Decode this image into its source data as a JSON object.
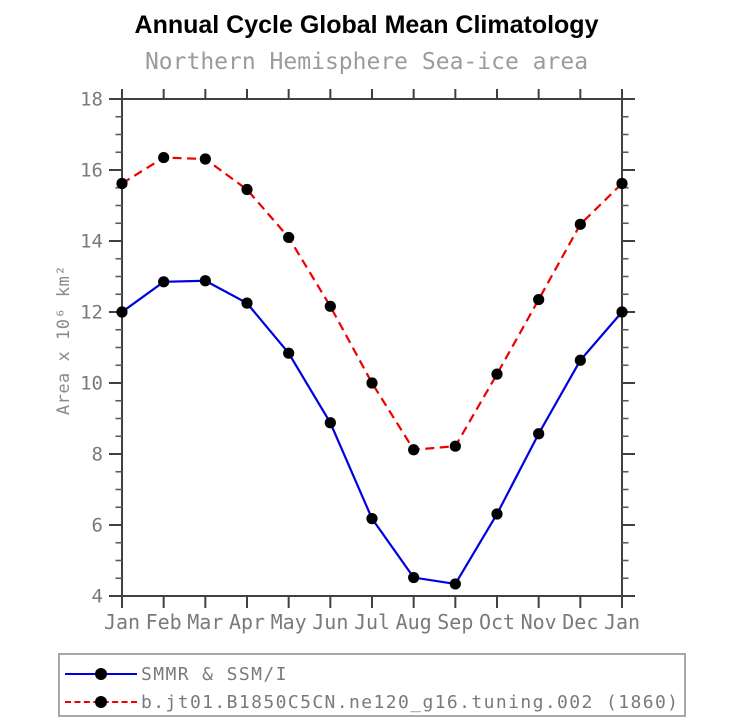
{
  "chart_data": {
    "type": "line",
    "title": "Annual Cycle Global Mean Climatology",
    "subtitle": "Northern Hemisphere Sea-ice area",
    "xlabel": "",
    "ylabel": "Area x 10⁶ km²",
    "x_tick_labels": [
      "Jan",
      "Feb",
      "Mar",
      "Apr",
      "May",
      "Jun",
      "Jul",
      "Aug",
      "Sep",
      "Oct",
      "Nov",
      "Dec",
      "Jan"
    ],
    "ylim": [
      4,
      18
    ],
    "yticks": [
      4,
      6,
      8,
      10,
      12,
      14,
      16,
      18
    ],
    "y_minor_step": 0.5,
    "grid": false,
    "frame_color": "#404040",
    "tick_label_color": "#7a7a7a",
    "legend": {
      "position": "bottom-left",
      "border_color": "#a8a8a8"
    },
    "series": [
      {
        "name": "SMMR & SSM/I",
        "line_style": "solid",
        "color": "#0000e0",
        "marker": "filled-circle",
        "marker_color": "#000000",
        "values": [
          12.0,
          12.85,
          12.88,
          12.25,
          10.84,
          8.88,
          6.18,
          4.52,
          4.34,
          6.31,
          8.57,
          10.64,
          12.0
        ]
      },
      {
        "name": "b.jt01.B1850C5CN.ne120_g16.tuning.002 (1860)",
        "line_style": "dashed",
        "color": "#ee0000",
        "marker": "filled-circle",
        "marker_color": "#000000",
        "values": [
          15.62,
          16.35,
          16.31,
          15.45,
          14.1,
          12.16,
          10.0,
          8.12,
          8.22,
          10.25,
          12.35,
          14.47,
          15.62
        ]
      }
    ]
  }
}
